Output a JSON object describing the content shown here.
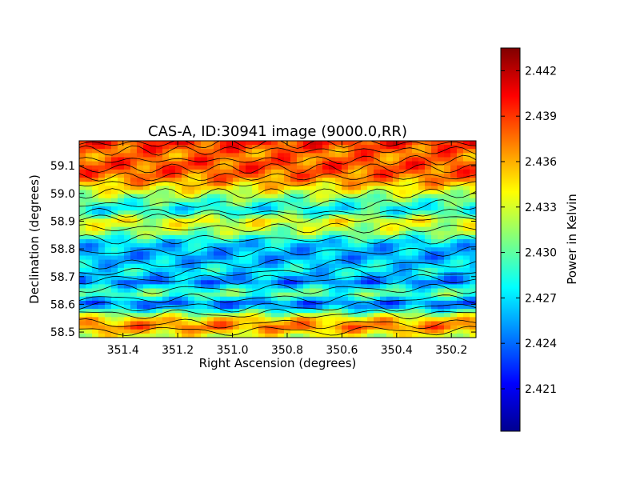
{
  "chart_data": {
    "type": "heatmap",
    "title": "CAS-A, ID:30941 image (9000.0,RR)",
    "xlabel": "Right Ascension (degrees)",
    "ylabel": "Declination (degrees)",
    "colorbar_label": "Power in Kelvin",
    "xlim": [
      351.56,
      350.11
    ],
    "ylim": [
      58.48,
      59.19
    ],
    "x_reversed": true,
    "x_ticks": [
      351.4,
      351.2,
      351.0,
      350.8,
      350.6,
      350.4,
      350.2
    ],
    "x_tick_labels": [
      "351.4",
      "351.2",
      "351.0",
      "350.8",
      "350.6",
      "350.4",
      "350.2"
    ],
    "y_ticks": [
      58.5,
      58.6,
      58.7,
      58.8,
      58.9,
      59.0,
      59.1
    ],
    "y_tick_labels": [
      "58.5",
      "58.6",
      "58.7",
      "58.8",
      "58.9",
      "59.0",
      "59.1"
    ],
    "colorbar_range": [
      2.4182,
      2.4435
    ],
    "colorbar_ticks": [
      2.421,
      2.424,
      2.427,
      2.43,
      2.433,
      2.436,
      2.439,
      2.442
    ],
    "colorbar_tick_labels": [
      "2.421",
      "2.424",
      "2.427",
      "2.430",
      "2.433",
      "2.436",
      "2.439",
      "2.442"
    ],
    "colormap": "jet",
    "band_profile": {
      "dec": [
        58.48,
        58.52,
        58.55,
        58.6,
        58.64,
        58.68,
        58.72,
        58.77,
        58.82,
        58.86,
        58.9,
        58.94,
        58.98,
        59.02,
        59.06,
        59.1,
        59.14,
        59.19
      ],
      "power": [
        2.4325,
        2.4375,
        2.4345,
        2.4235,
        2.4305,
        2.4245,
        2.4275,
        2.4255,
        2.4265,
        2.4315,
        2.4335,
        2.4275,
        2.4305,
        2.4345,
        2.4375,
        2.4385,
        2.4375,
        2.4395
      ]
    },
    "grid": false,
    "legend": "none"
  }
}
